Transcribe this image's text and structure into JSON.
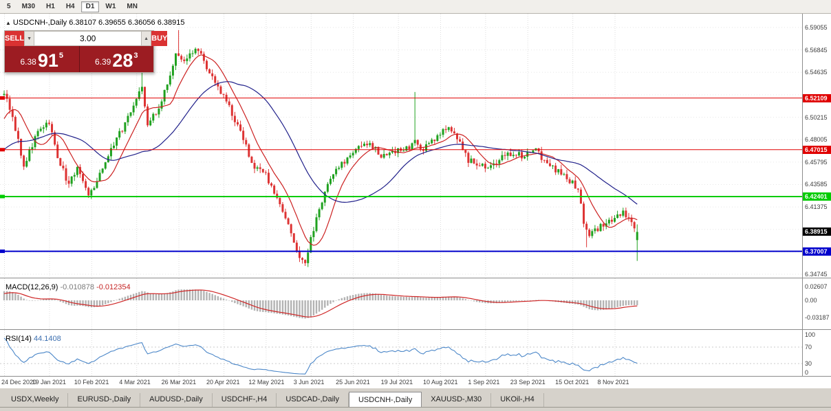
{
  "toolbar": {
    "timeframes": [
      {
        "label": "5",
        "active": false
      },
      {
        "label": "M30",
        "active": false
      },
      {
        "label": "H1",
        "active": false
      },
      {
        "label": "H4",
        "active": false
      },
      {
        "label": "D1",
        "active": true
      },
      {
        "label": "W1",
        "active": false
      },
      {
        "label": "MN",
        "active": false
      }
    ]
  },
  "chart_header": {
    "marker": "▲",
    "title": "USDCNH-,Daily",
    "open": "6.38107",
    "high": "6.39655",
    "low": "6.36056",
    "close": "6.38915"
  },
  "trade_panel": {
    "sell_label": "SELL",
    "buy_label": "BUY",
    "volume": "3.00",
    "sell_price": {
      "main": "6.38",
      "big": "91",
      "sup": "5"
    },
    "buy_price": {
      "main": "6.39",
      "big": "28",
      "sup": "3"
    }
  },
  "indicators": {
    "macd": {
      "name": "MACD(12,26,9)",
      "value1": "-0.010878",
      "value2": "-0.012354",
      "axis_labels": [
        {
          "text": "0.02607",
          "value": 0.02607
        },
        {
          "text": "0.00",
          "value": 0
        },
        {
          "text": "-0.03187",
          "value": -0.03187
        }
      ]
    },
    "rsi": {
      "name": "RSI(14)",
      "value": "44.1408",
      "axis_labels": [
        {
          "text": "100",
          "value": 100
        },
        {
          "text": "70",
          "value": 70
        },
        {
          "text": "30",
          "value": 30
        },
        {
          "text": "0",
          "value": 0
        }
      ],
      "levels": [
        70,
        30
      ]
    }
  },
  "tabs": {
    "items": [
      {
        "label": "USDX,Weekly",
        "active": false
      },
      {
        "label": "EURUSD-,Daily",
        "active": false
      },
      {
        "label": "AUDUSD-,Daily",
        "active": false
      },
      {
        "label": "USDCHF-,H4",
        "active": false
      },
      {
        "label": "USDCAD-,Daily",
        "active": false
      },
      {
        "label": "USDCNH-,Daily",
        "active": true
      },
      {
        "label": "XAUUSD-,M30",
        "active": false
      },
      {
        "label": "UKOil-,H4",
        "active": false
      }
    ]
  },
  "chart_data": {
    "type": "candlestick",
    "symbol": "USDCNH-",
    "timeframe": "Daily",
    "last_ohlc": {
      "open": 6.38107,
      "high": 6.39655,
      "low": 6.36056,
      "close": 6.38915
    },
    "candle_count": 226,
    "y_axis": {
      "top_price": 6.59055,
      "step": 0.0221,
      "visible_labels": [
        6.59055,
        6.56845,
        6.54635,
        6.50215,
        6.48005,
        6.45795,
        6.43585,
        6.41375,
        6.34745
      ]
    },
    "x_axis": {
      "tick_labels": [
        "24 Dec 2020",
        "19 Jan 2021",
        "10 Feb 2021",
        "4 Mar 2021",
        "26 Mar 2021",
        "20 Apr 2021",
        "12 May 2021",
        "3 Jun 2021",
        "25 Jun 2021",
        "19 Jul 2021",
        "10 Aug 2021",
        "1 Sep 2021",
        "23 Sep 2021",
        "15 Oct 2021",
        "8 Nov 2021"
      ],
      "tick_indices": [
        0,
        16,
        31,
        47,
        62,
        78,
        93,
        109,
        124,
        140,
        155,
        171,
        186,
        202,
        217
      ]
    },
    "price_anchors": [
      [
        -40,
        6.435
      ],
      [
        -25,
        6.455
      ],
      [
        -12,
        6.465
      ],
      [
        -5,
        6.495
      ],
      [
        0,
        6.528
      ],
      [
        4,
        6.49
      ],
      [
        7,
        6.455
      ],
      [
        12,
        6.488
      ],
      [
        16,
        6.496
      ],
      [
        19,
        6.462
      ],
      [
        23,
        6.436
      ],
      [
        26,
        6.452
      ],
      [
        30,
        6.424
      ],
      [
        33,
        6.438
      ],
      [
        38,
        6.472
      ],
      [
        43,
        6.495
      ],
      [
        47,
        6.52
      ],
      [
        49,
        6.535
      ],
      [
        51,
        6.495
      ],
      [
        55,
        6.512
      ],
      [
        58,
        6.535
      ],
      [
        61,
        6.566
      ],
      [
        64,
        6.558
      ],
      [
        68,
        6.569
      ],
      [
        71,
        6.558
      ],
      [
        74,
        6.54
      ],
      [
        78,
        6.524
      ],
      [
        81,
        6.505
      ],
      [
        85,
        6.48
      ],
      [
        89,
        6.452
      ],
      [
        93,
        6.445
      ],
      [
        97,
        6.42
      ],
      [
        101,
        6.398
      ],
      [
        105,
        6.363
      ],
      [
        107,
        6.36
      ],
      [
        110,
        6.392
      ],
      [
        114,
        6.428
      ],
      [
        118,
        6.452
      ],
      [
        122,
        6.462
      ],
      [
        126,
        6.472
      ],
      [
        130,
        6.478
      ],
      [
        134,
        6.462
      ],
      [
        138,
        6.47
      ],
      [
        142,
        6.468
      ],
      [
        146,
        6.478
      ],
      [
        149,
        6.47
      ],
      [
        153,
        6.48
      ],
      [
        157,
        6.492
      ],
      [
        161,
        6.482
      ],
      [
        165,
        6.46
      ],
      [
        169,
        6.454
      ],
      [
        173,
        6.452
      ],
      [
        177,
        6.462
      ],
      [
        181,
        6.468
      ],
      [
        185,
        6.462
      ],
      [
        188,
        6.472
      ],
      [
        192,
        6.46
      ],
      [
        196,
        6.45
      ],
      [
        200,
        6.442
      ],
      [
        204,
        6.432
      ],
      [
        206,
        6.398
      ],
      [
        208,
        6.386
      ],
      [
        211,
        6.392
      ],
      [
        214,
        6.398
      ],
      [
        217,
        6.402
      ],
      [
        220,
        6.408
      ],
      [
        223,
        6.398
      ],
      [
        225,
        6.389
      ]
    ],
    "spikes": [
      {
        "index": 49,
        "high": 6.548
      },
      {
        "index": 62,
        "high": 6.588
      },
      {
        "index": 146,
        "high": 6.527
      },
      {
        "index": 207,
        "low": 6.374
      }
    ],
    "hlines": [
      {
        "price": 6.52109,
        "label": "6.52109",
        "color": "#e00000",
        "width": 1
      },
      {
        "price": 6.47015,
        "label": "6.47015",
        "color": "#e00000",
        "width": 1
      },
      {
        "price": 6.42401,
        "label": "6.42401",
        "color": "#00cc00",
        "width": 2
      },
      {
        "price": 6.37007,
        "label": "6.37007",
        "color": "#0000cc",
        "width": 2
      }
    ],
    "current_price": {
      "price": 6.38915,
      "label": "6.38915",
      "color": "#000000"
    },
    "moving_averages": [
      {
        "period": 10,
        "color": "#cc2020"
      },
      {
        "period": 34,
        "color": "#20208a"
      }
    ],
    "macd_params": {
      "fast": 12,
      "slow": 26,
      "signal": 9
    },
    "rsi_params": {
      "period": 14
    },
    "colors": {
      "bull": "#1fa11f",
      "bear": "#dd3333",
      "macd_histogram": "#b3b3b3",
      "macd_signal": "#cf2626",
      "rsi_line": "#4a86c8",
      "grid": "#dcdcdc",
      "level_line": "#c9c9c9"
    }
  }
}
